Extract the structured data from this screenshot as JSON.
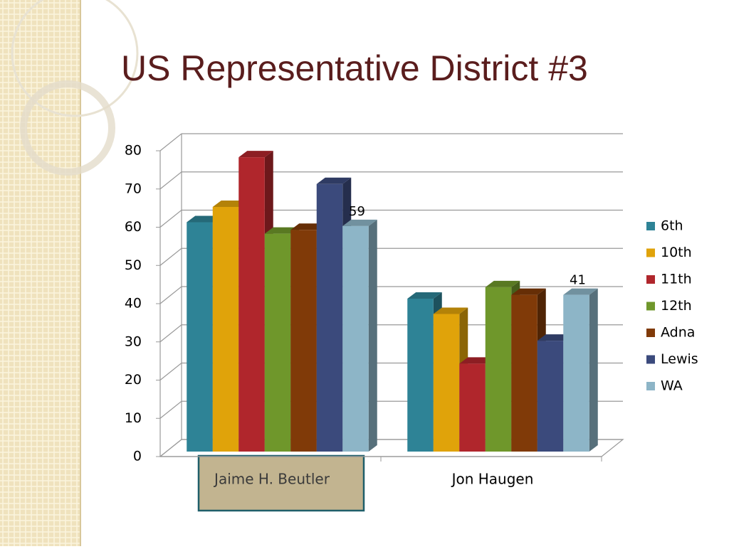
{
  "chart_data": {
    "type": "bar3d",
    "title": "US Representative District #3",
    "categories": [
      "Jaime H. Beutler",
      "Jon Haugen"
    ],
    "series": [
      {
        "name": "6th",
        "color": "#2e8396",
        "values": [
          60,
          40
        ]
      },
      {
        "name": "10th",
        "color": "#e0a30a",
        "values": [
          64,
          36
        ]
      },
      {
        "name": "11th",
        "color": "#b0262c",
        "values": [
          77,
          23
        ]
      },
      {
        "name": "12th",
        "color": "#6f972b",
        "values": [
          57,
          43
        ]
      },
      {
        "name": "Adna",
        "color": "#803a08",
        "values": [
          58,
          41
        ]
      },
      {
        "name": "Lewis",
        "color": "#3b4a7c",
        "values": [
          70,
          29
        ]
      },
      {
        "name": "WA",
        "color": "#8db5c7",
        "values": [
          59,
          41
        ],
        "show_value_labels": true
      }
    ],
    "ylim": [
      0,
      80
    ],
    "yticks": [
      0,
      10,
      20,
      30,
      40,
      50,
      60,
      70,
      80
    ],
    "grid": true,
    "legend": "right"
  }
}
